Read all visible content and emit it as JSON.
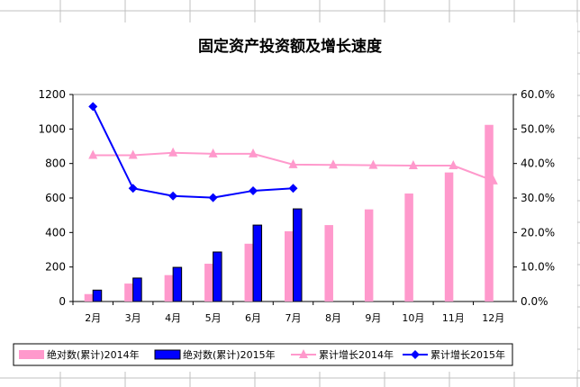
{
  "chart_data": {
    "type": "bar+line",
    "title": "固定资产投资额及增长速度",
    "categories": [
      "2月",
      "3月",
      "4月",
      "5月",
      "6月",
      "7月",
      "8月",
      "9月",
      "10月",
      "11月",
      "12月"
    ],
    "y_left": {
      "range": [
        0,
        1200
      ],
      "ticks": [
        "0",
        "200",
        "400",
        "600",
        "800",
        "1000",
        "1200"
      ]
    },
    "y_right": {
      "range": [
        0,
        60
      ],
      "ticks": [
        "0.0%",
        "10.0%",
        "20.0%",
        "30.0%",
        "40.0%",
        "50.0%",
        "60.0%"
      ]
    },
    "grid": false,
    "legend_position": "bottom",
    "series": [
      {
        "name": "绝对数(累计)2014年",
        "type": "bar",
        "axis": "left",
        "color": "#ff99cc",
        "values": [
          43,
          104,
          153,
          219,
          335,
          407,
          443,
          534,
          626,
          748,
          1024
        ]
      },
      {
        "name": "绝对数(累计)2015年",
        "type": "bar",
        "axis": "left",
        "color": "#0000ff",
        "values": [
          66,
          136,
          198,
          287,
          443,
          537,
          null,
          null,
          null,
          null,
          null
        ]
      },
      {
        "name": "累计增长2014年",
        "type": "line",
        "axis": "right",
        "marker": "triangle",
        "color": "#ff99cc",
        "values": [
          42.4,
          42.4,
          43.1,
          42.8,
          42.8,
          39.7,
          39.6,
          39.5,
          39.4,
          39.4,
          35.0
        ]
      },
      {
        "name": "累计增长2015年",
        "type": "line",
        "axis": "right",
        "marker": "diamond",
        "color": "#0000ff",
        "values": [
          56.5,
          32.8,
          30.6,
          30.1,
          32.1,
          32.8,
          null,
          null,
          null,
          null,
          null
        ]
      }
    ]
  }
}
